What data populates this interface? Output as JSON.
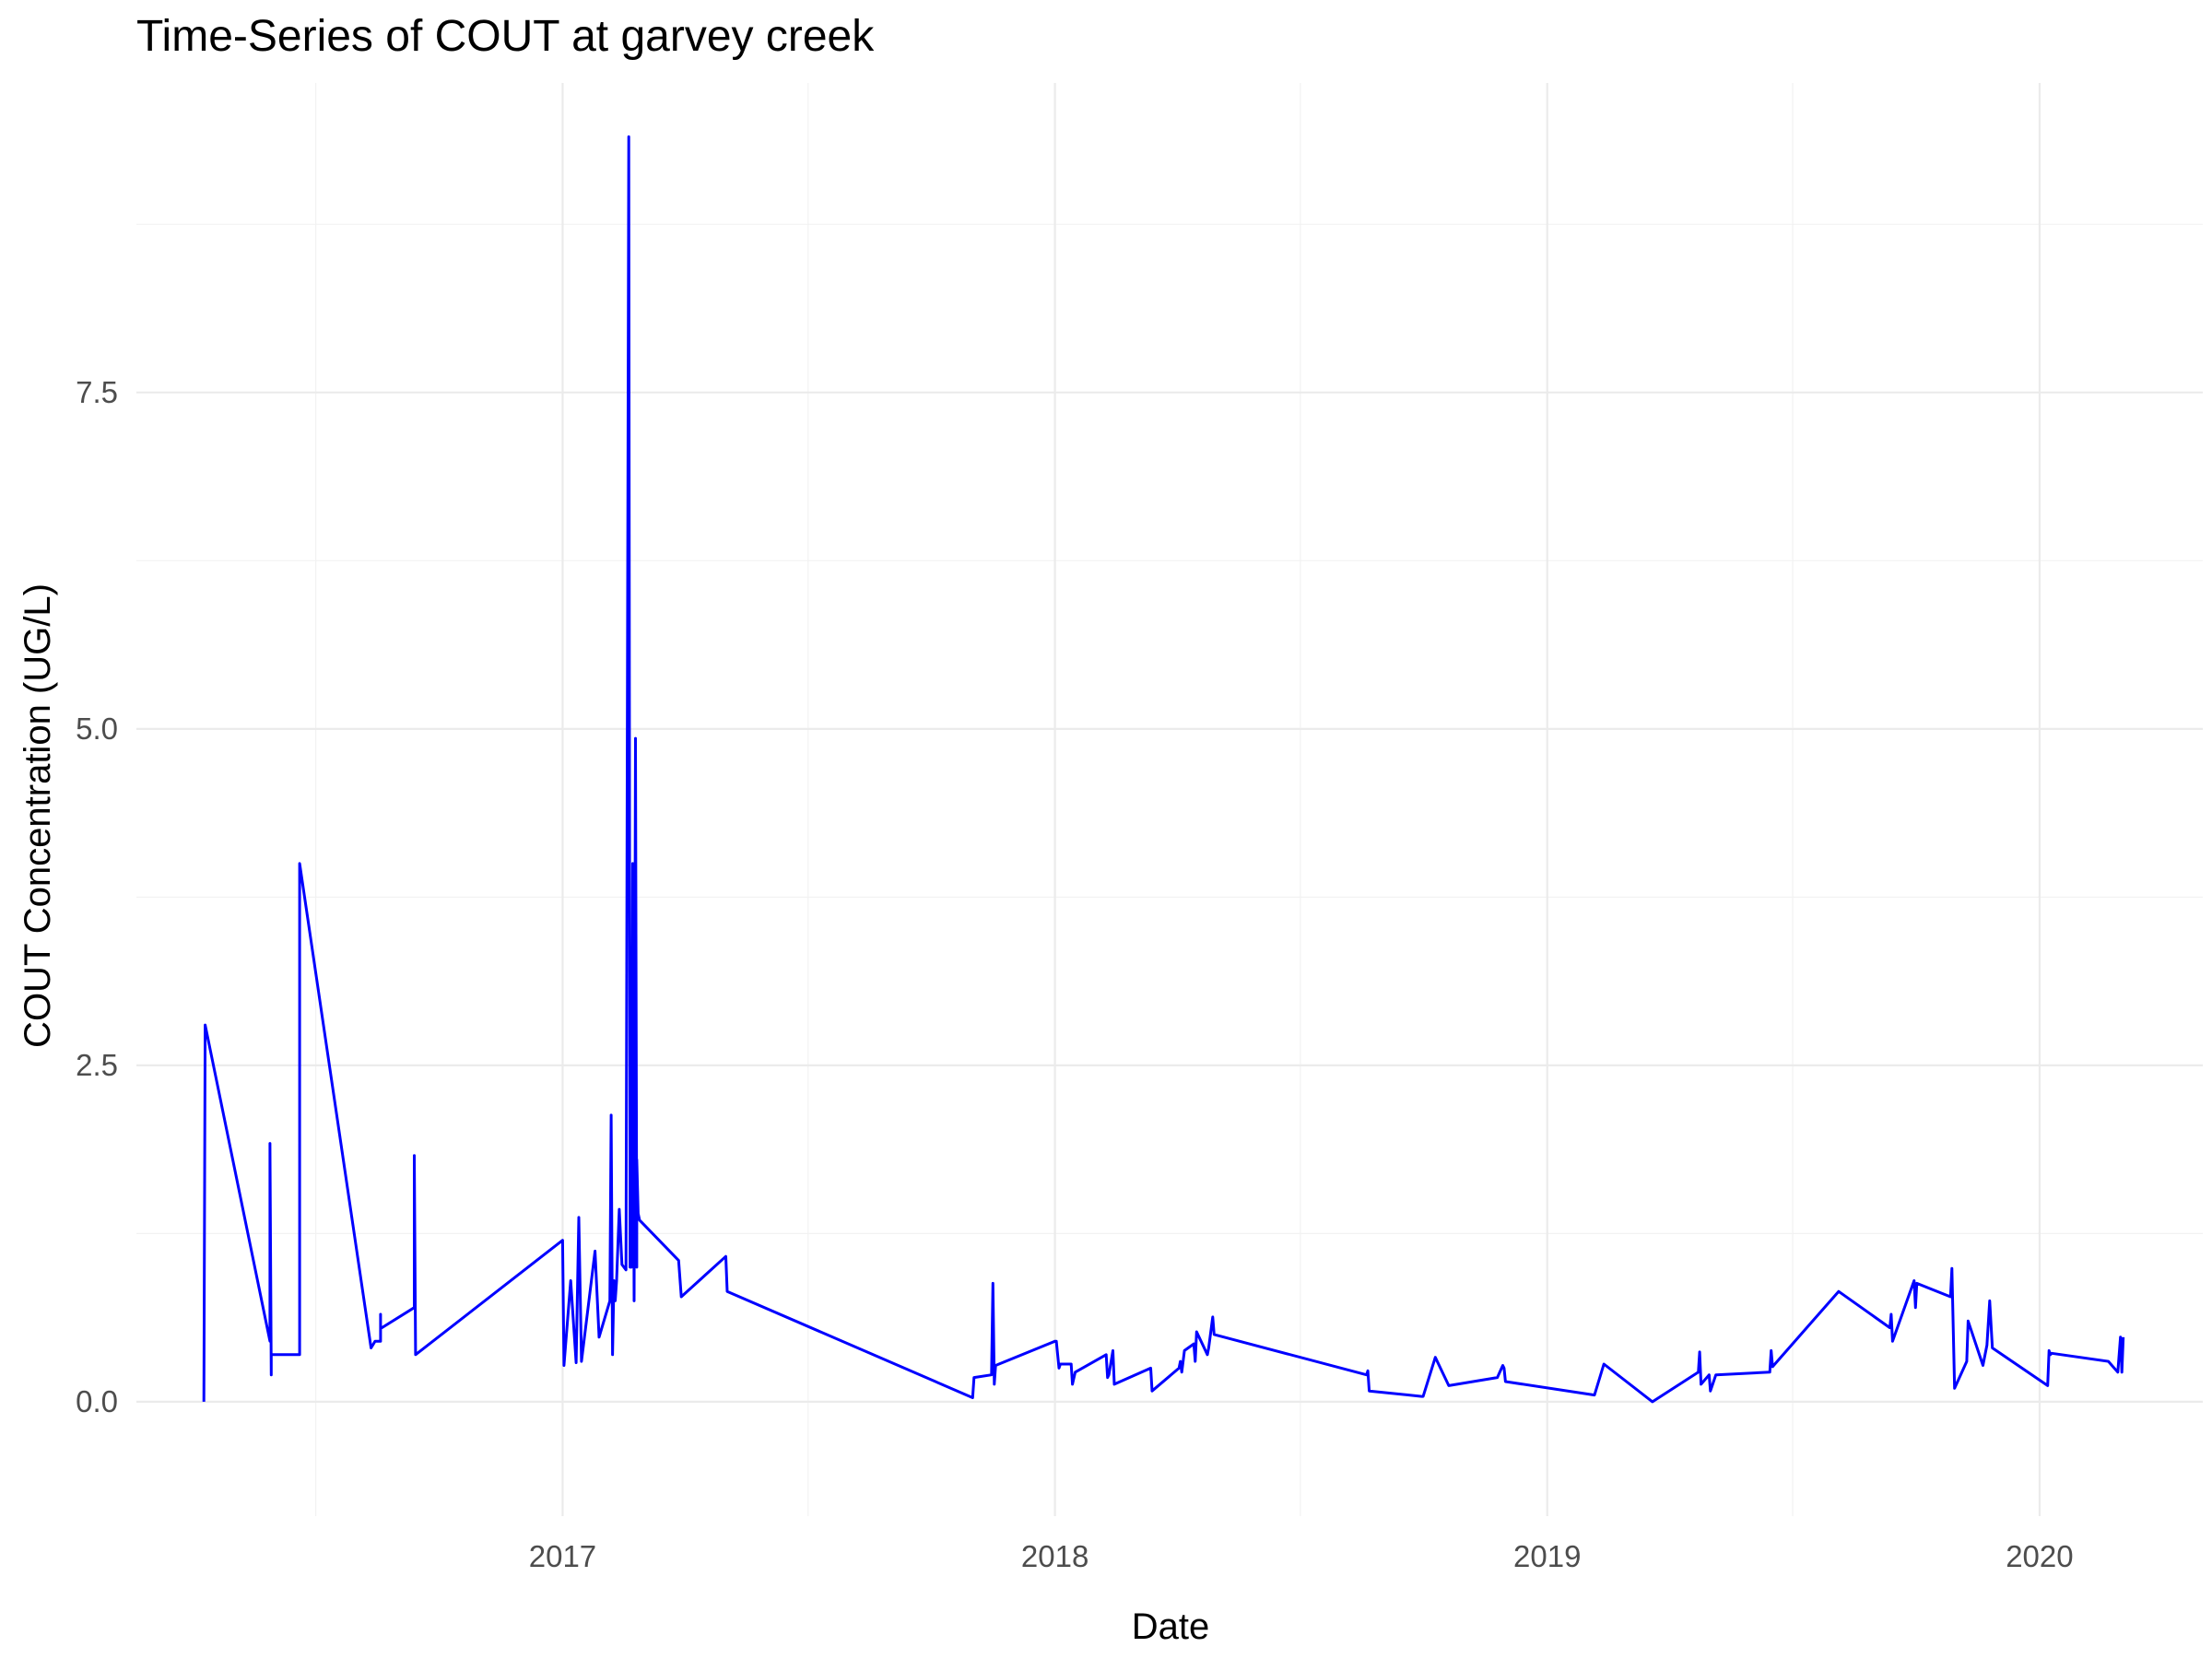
{
  "chart_data": {
    "type": "line",
    "title": "Time-Series of COUT at garvey creek",
    "xlabel": "Date",
    "ylabel": "COUT Concentration (UG/L)",
    "xlim": [
      "2016-02-20",
      "2020-05-01"
    ],
    "ylim": [
      -0.85,
      9.8
    ],
    "x_ticks": [
      "2017-01-01",
      "2018-01-01",
      "2019-01-01",
      "2020-01-01"
    ],
    "x_tick_labels": [
      "2017",
      "2018",
      "2019",
      "2020"
    ],
    "y_ticks": [
      0,
      2.5,
      5,
      7.5
    ],
    "y_tick_labels": [
      "0.0",
      "2.5",
      "5.0",
      "7.5"
    ],
    "grid": true,
    "legend": "none",
    "color": "#0000ff",
    "series": [
      {
        "x": [
          "2016-04-10",
          "2016-04-11",
          "2016-05-29",
          "2016-05-29",
          "2016-05-30",
          "2016-05-30",
          "2016-06-02",
          "2016-06-18",
          "2016-06-20",
          "2016-06-20",
          "2016-08-12",
          "2016-08-15",
          "2016-08-19",
          "2016-08-19",
          "2016-08-19",
          "2016-08-20",
          "2016-09-13",
          "2016-09-13",
          "2016-09-14",
          "2017-01-01",
          "2017-01-02",
          "2017-01-07",
          "2017-01-11",
          "2017-01-13",
          "2017-01-15",
          "2017-01-25",
          "2017-01-28",
          "2017-02-05",
          "2017-02-06",
          "2017-02-07",
          "2017-02-08",
          "2017-02-09",
          "2017-02-10",
          "2017-02-12",
          "2017-02-14",
          "2017-02-17",
          "2017-02-19",
          "2017-02-20",
          "2017-02-21",
          "2017-02-22",
          "2017-02-23",
          "2017-02-24",
          "2017-02-25",
          "2017-02-25",
          "2017-02-26",
          "2017-02-27",
          "2017-03-28",
          "2017-03-30",
          "2017-05-02",
          "2017-05-03",
          "2017-11-01",
          "2017-11-02",
          "2017-11-15",
          "2017-11-16",
          "2017-11-17",
          "2017-11-18",
          "2018-01-01",
          "2018-01-02",
          "2018-01-04",
          "2018-01-05",
          "2018-01-06",
          "2018-01-13",
          "2018-01-14",
          "2018-01-16",
          "2018-02-08",
          "2018-02-09",
          "2018-02-10",
          "2018-02-13",
          "2018-02-14",
          "2018-03-13",
          "2018-03-14",
          "2018-04-03",
          "2018-04-04",
          "2018-04-05",
          "2018-04-07",
          "2018-04-14",
          "2018-04-15",
          "2018-04-16",
          "2018-04-24",
          "2018-04-25",
          "2018-04-28",
          "2018-04-29",
          "2018-08-20",
          "2018-08-21",
          "2018-08-22",
          "2018-09-30",
          "2018-10-01",
          "2018-10-10",
          "2018-10-20",
          "2018-11-25",
          "2018-11-29",
          "2018-11-30",
          "2018-12-01",
          "2019-02-05",
          "2019-02-12",
          "2019-03-20",
          "2019-04-23",
          "2019-04-24",
          "2019-04-25",
          "2019-05-01",
          "2019-05-02",
          "2019-05-06",
          "2019-06-15",
          "2019-06-16",
          "2019-06-17",
          "2019-07-15",
          "2019-08-05",
          "2019-09-12",
          "2019-09-13",
          "2019-09-14",
          "2019-09-30",
          "2019-10-01",
          "2019-10-02",
          "2019-10-27",
          "2019-10-28",
          "2019-10-30",
          "2019-11-08",
          "2019-11-09",
          "2019-11-20",
          "2019-11-21",
          "2019-11-23",
          "2019-11-25",
          "2019-11-27",
          "2020-01-07",
          "2020-01-08",
          "2020-01-09",
          "2020-01-10",
          "2020-02-21",
          "2020-02-28",
          "2020-03-01",
          "2020-03-02",
          "2020-03-03"
        ],
        "y": [
          0,
          2.8,
          0.45,
          1.92,
          0.2,
          0.35,
          0.35,
          0.35,
          0.35,
          4.0,
          0.4,
          0.45,
          0.45,
          0.65,
          0.55,
          0.55,
          0.7,
          1.83,
          0.35,
          1.2,
          0.27,
          0.9,
          0.29,
          1.37,
          0.3,
          1.12,
          0.48,
          0.75,
          2.13,
          0.35,
          0.9,
          0.75,
          0.9,
          1.43,
          1.02,
          0.98,
          9.4,
          1.0,
          1.0,
          4.0,
          0.75,
          4.93,
          1.0,
          1.8,
          1.4,
          1.35,
          1.05,
          0.78,
          1.08,
          0.82,
          0.03,
          0.18,
          0.2,
          0.88,
          0.13,
          0.27,
          0.45,
          0.45,
          0.25,
          0.28,
          0.28,
          0.28,
          0.13,
          0.22,
          0.35,
          0.18,
          0.2,
          0.38,
          0.13,
          0.25,
          0.08,
          0.25,
          0.3,
          0.22,
          0.38,
          0.43,
          0.3,
          0.52,
          0.35,
          0.4,
          0.63,
          0.5,
          0.2,
          0.23,
          0.08,
          0.04,
          0.04,
          0.33,
          0.12,
          0.18,
          0.27,
          0.25,
          0.15,
          0.05,
          0.28,
          0.0,
          0.22,
          0.37,
          0.13,
          0.2,
          0.08,
          0.2,
          0.22,
          0.38,
          0.26,
          0.58,
          0.82,
          0.55,
          0.65,
          0.45,
          0.9,
          0.7,
          0.88,
          0.78,
          0.99,
          0.1,
          0.3,
          0.6,
          0.27,
          0.32,
          0.42,
          0.75,
          0.4,
          0.12,
          0.38,
          0.35,
          0.36,
          0.3,
          0.22,
          0.48,
          0.22,
          0.48
        ]
      }
    ]
  }
}
